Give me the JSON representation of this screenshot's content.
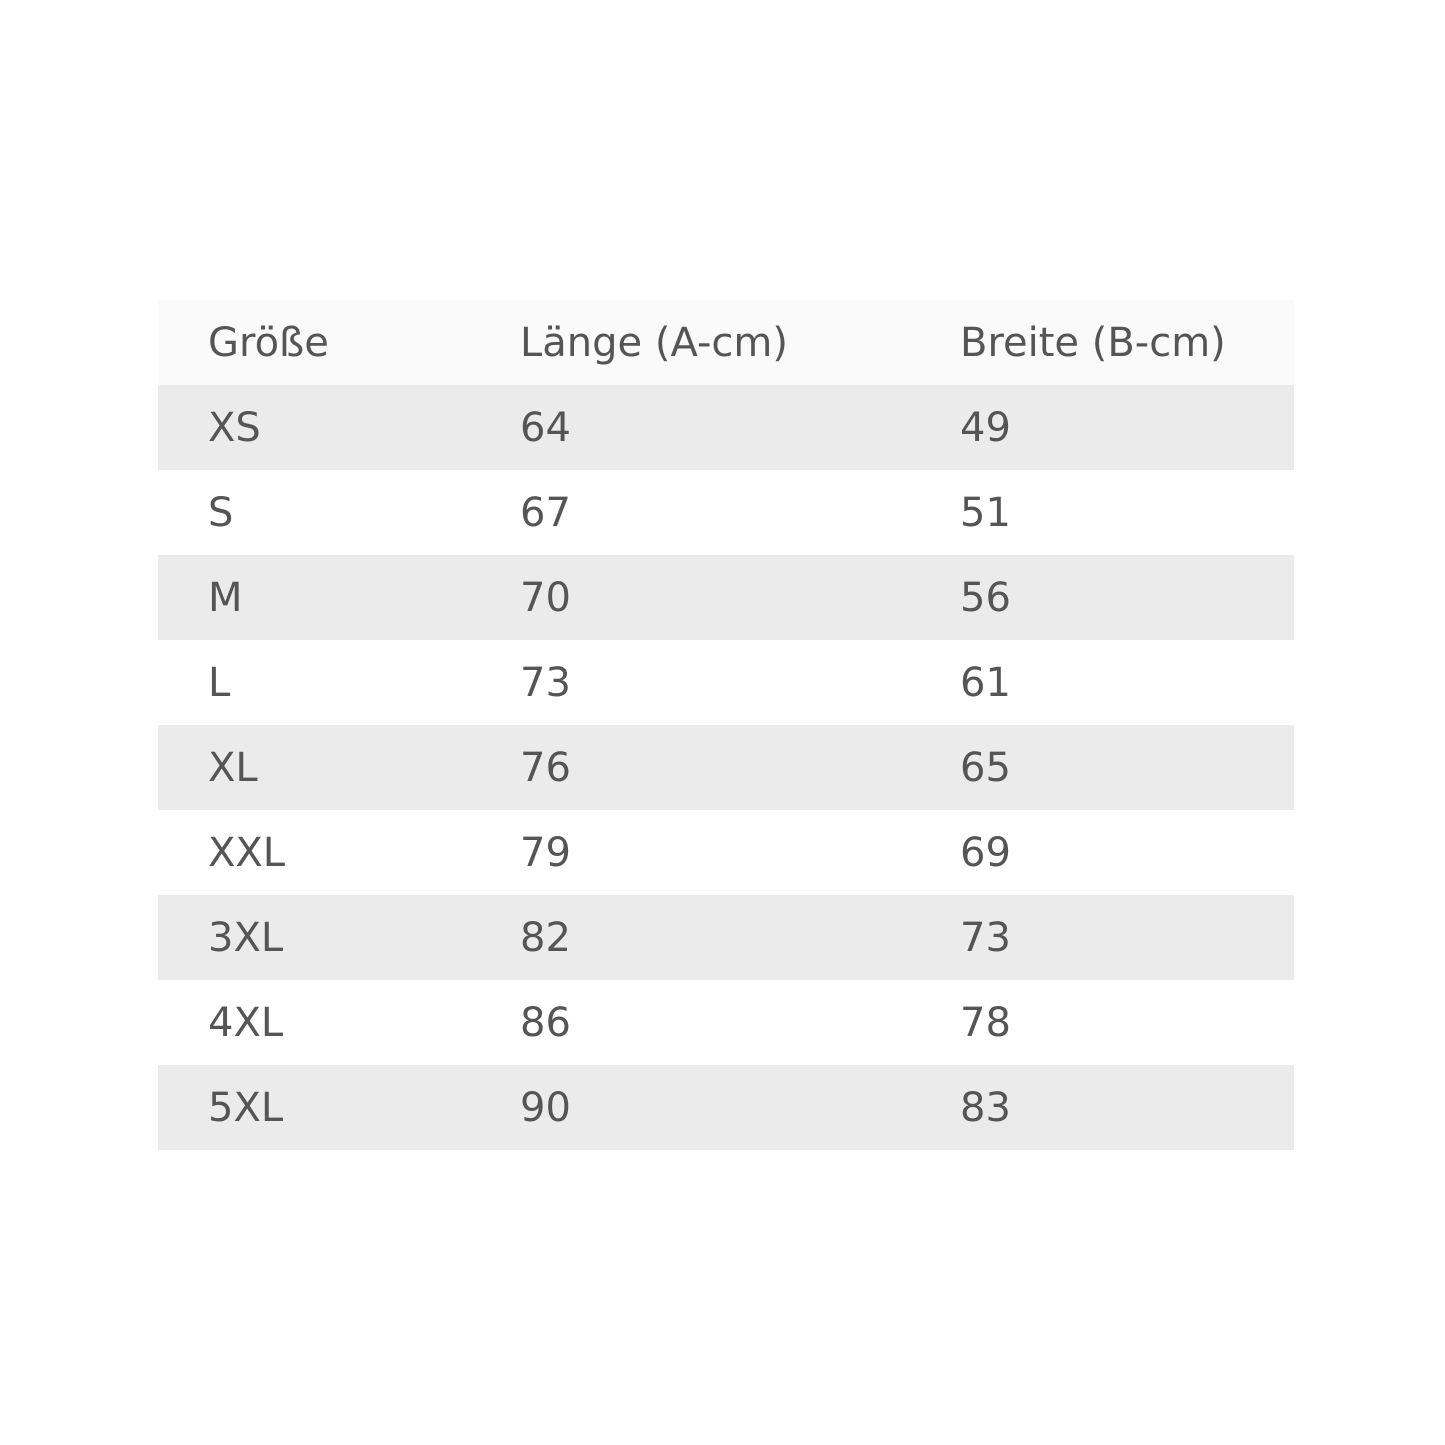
{
  "table": {
    "header": [
      "Größe",
      "Länge (A-cm)",
      "Breite (B-cm)"
    ],
    "rows": [
      [
        "XS",
        "64",
        "49"
      ],
      [
        "S",
        "67",
        "51"
      ],
      [
        "M",
        "70",
        "56"
      ],
      [
        "L",
        "73",
        "61"
      ],
      [
        "XL",
        "76",
        "65"
      ],
      [
        "XXL",
        "79",
        "69"
      ],
      [
        "3XL",
        "82",
        "73"
      ],
      [
        "4XL",
        "86",
        "78"
      ],
      [
        "5XL",
        "90",
        "83"
      ]
    ]
  }
}
